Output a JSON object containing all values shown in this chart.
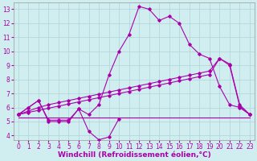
{
  "xlabel": "Windchill (Refroidissement éolien,°C)",
  "xlim": [
    -0.5,
    23.5
  ],
  "ylim": [
    3.7,
    13.5
  ],
  "yticks": [
    4,
    5,
    6,
    7,
    8,
    9,
    10,
    11,
    12,
    13
  ],
  "xticks": [
    0,
    1,
    2,
    3,
    4,
    5,
    6,
    7,
    8,
    9,
    10,
    11,
    12,
    13,
    14,
    15,
    16,
    17,
    18,
    19,
    20,
    21,
    22,
    23
  ],
  "background_color": "#d0eef0",
  "grid_color": "#b0d4d8",
  "line_color": "#aa00aa",
  "line1_y": [
    5.5,
    6.0,
    6.5,
    5.0,
    5.0,
    5.0,
    5.9,
    4.3,
    3.7,
    3.9,
    5.2,
    null,
    null,
    null,
    null,
    null,
    null,
    null,
    null,
    null,
    null,
    null,
    null,
    null
  ],
  "line2_y": [
    5.5,
    6.0,
    6.5,
    5.1,
    5.1,
    5.1,
    5.9,
    5.5,
    6.2,
    8.3,
    10.0,
    11.2,
    13.2,
    13.0,
    12.2,
    12.5,
    12.0,
    10.5,
    9.8,
    9.5,
    7.5,
    6.2,
    6.0,
    5.5
  ],
  "line3_y": [
    5.5,
    5.75,
    6.0,
    6.2,
    6.35,
    6.5,
    6.65,
    6.8,
    6.95,
    7.1,
    7.25,
    7.4,
    7.55,
    7.7,
    7.85,
    8.0,
    8.15,
    8.3,
    8.45,
    8.6,
    9.5,
    9.1,
    6.2,
    5.5
  ],
  "line4_y": [
    5.5,
    5.65,
    5.8,
    5.95,
    6.1,
    6.25,
    6.4,
    6.55,
    6.7,
    6.85,
    7.0,
    7.15,
    7.3,
    7.45,
    7.6,
    7.75,
    7.9,
    8.05,
    8.2,
    8.35,
    9.5,
    9.0,
    6.1,
    5.5
  ],
  "line5_y": [
    5.3,
    5.3,
    5.3,
    5.3,
    5.3,
    5.3,
    5.3,
    5.3,
    5.3,
    5.3,
    5.3,
    5.3,
    5.3,
    5.3,
    5.3,
    5.3,
    5.3,
    5.3,
    5.3,
    5.3,
    5.3,
    5.3,
    5.3,
    5.3
  ],
  "markersize": 1.8,
  "linewidth": 0.8,
  "tick_fontsize": 5.5,
  "xlabel_fontsize": 6.5
}
